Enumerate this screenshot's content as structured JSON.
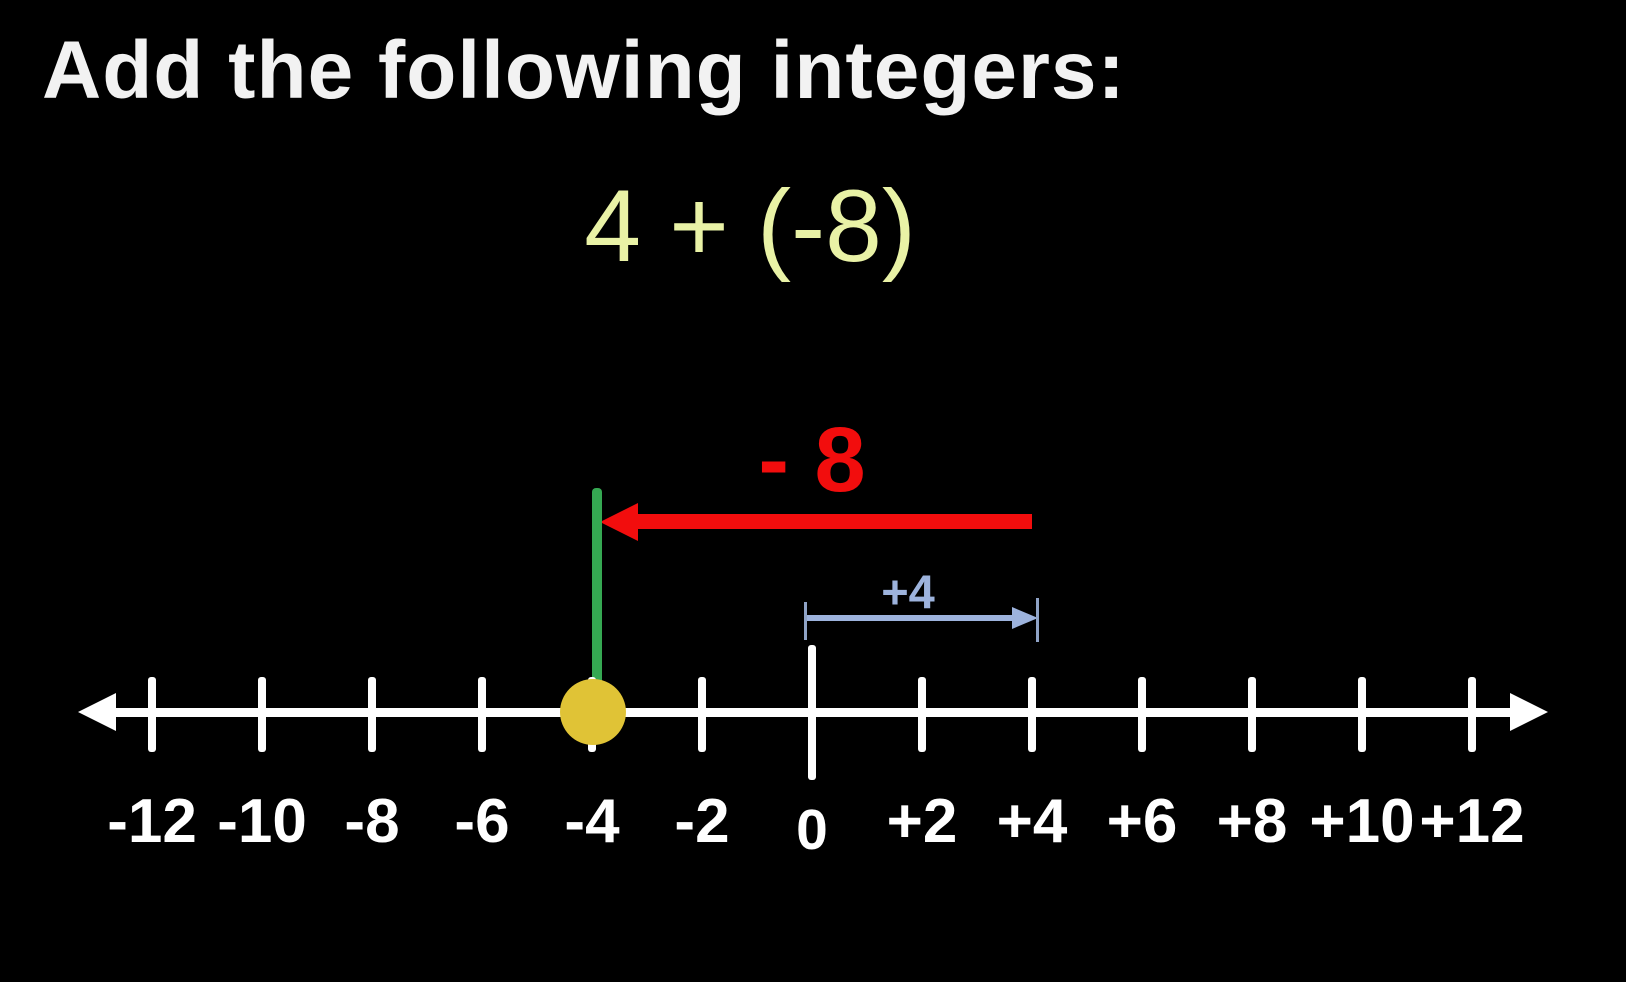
{
  "title": "Add the following integers:",
  "expression": "4 + (-8)",
  "red_arrow": {
    "label": "- 8",
    "value": -8,
    "from": 4,
    "to": -4
  },
  "blue_arrow": {
    "label": "+4",
    "value": 4,
    "from": 0,
    "to": 4
  },
  "result_point": {
    "value": -4
  },
  "number_line": {
    "min": -12,
    "max": 12,
    "step": 2,
    "labels": [
      "-12",
      "-10",
      "-8",
      "-6",
      "-4",
      "-2",
      "0",
      "+2",
      "+4",
      "+6",
      "+8",
      "+10",
      "+12"
    ]
  },
  "colors": {
    "background": "#000000",
    "title_text": "#f2f2f2",
    "expression_text": "#e9f2a6",
    "red_arrow": "#f20d0d",
    "blue_arrow": "#9db3dd",
    "green_marker": "#35a852",
    "yellow_point": "#e0c336",
    "axis": "#ffffff"
  }
}
